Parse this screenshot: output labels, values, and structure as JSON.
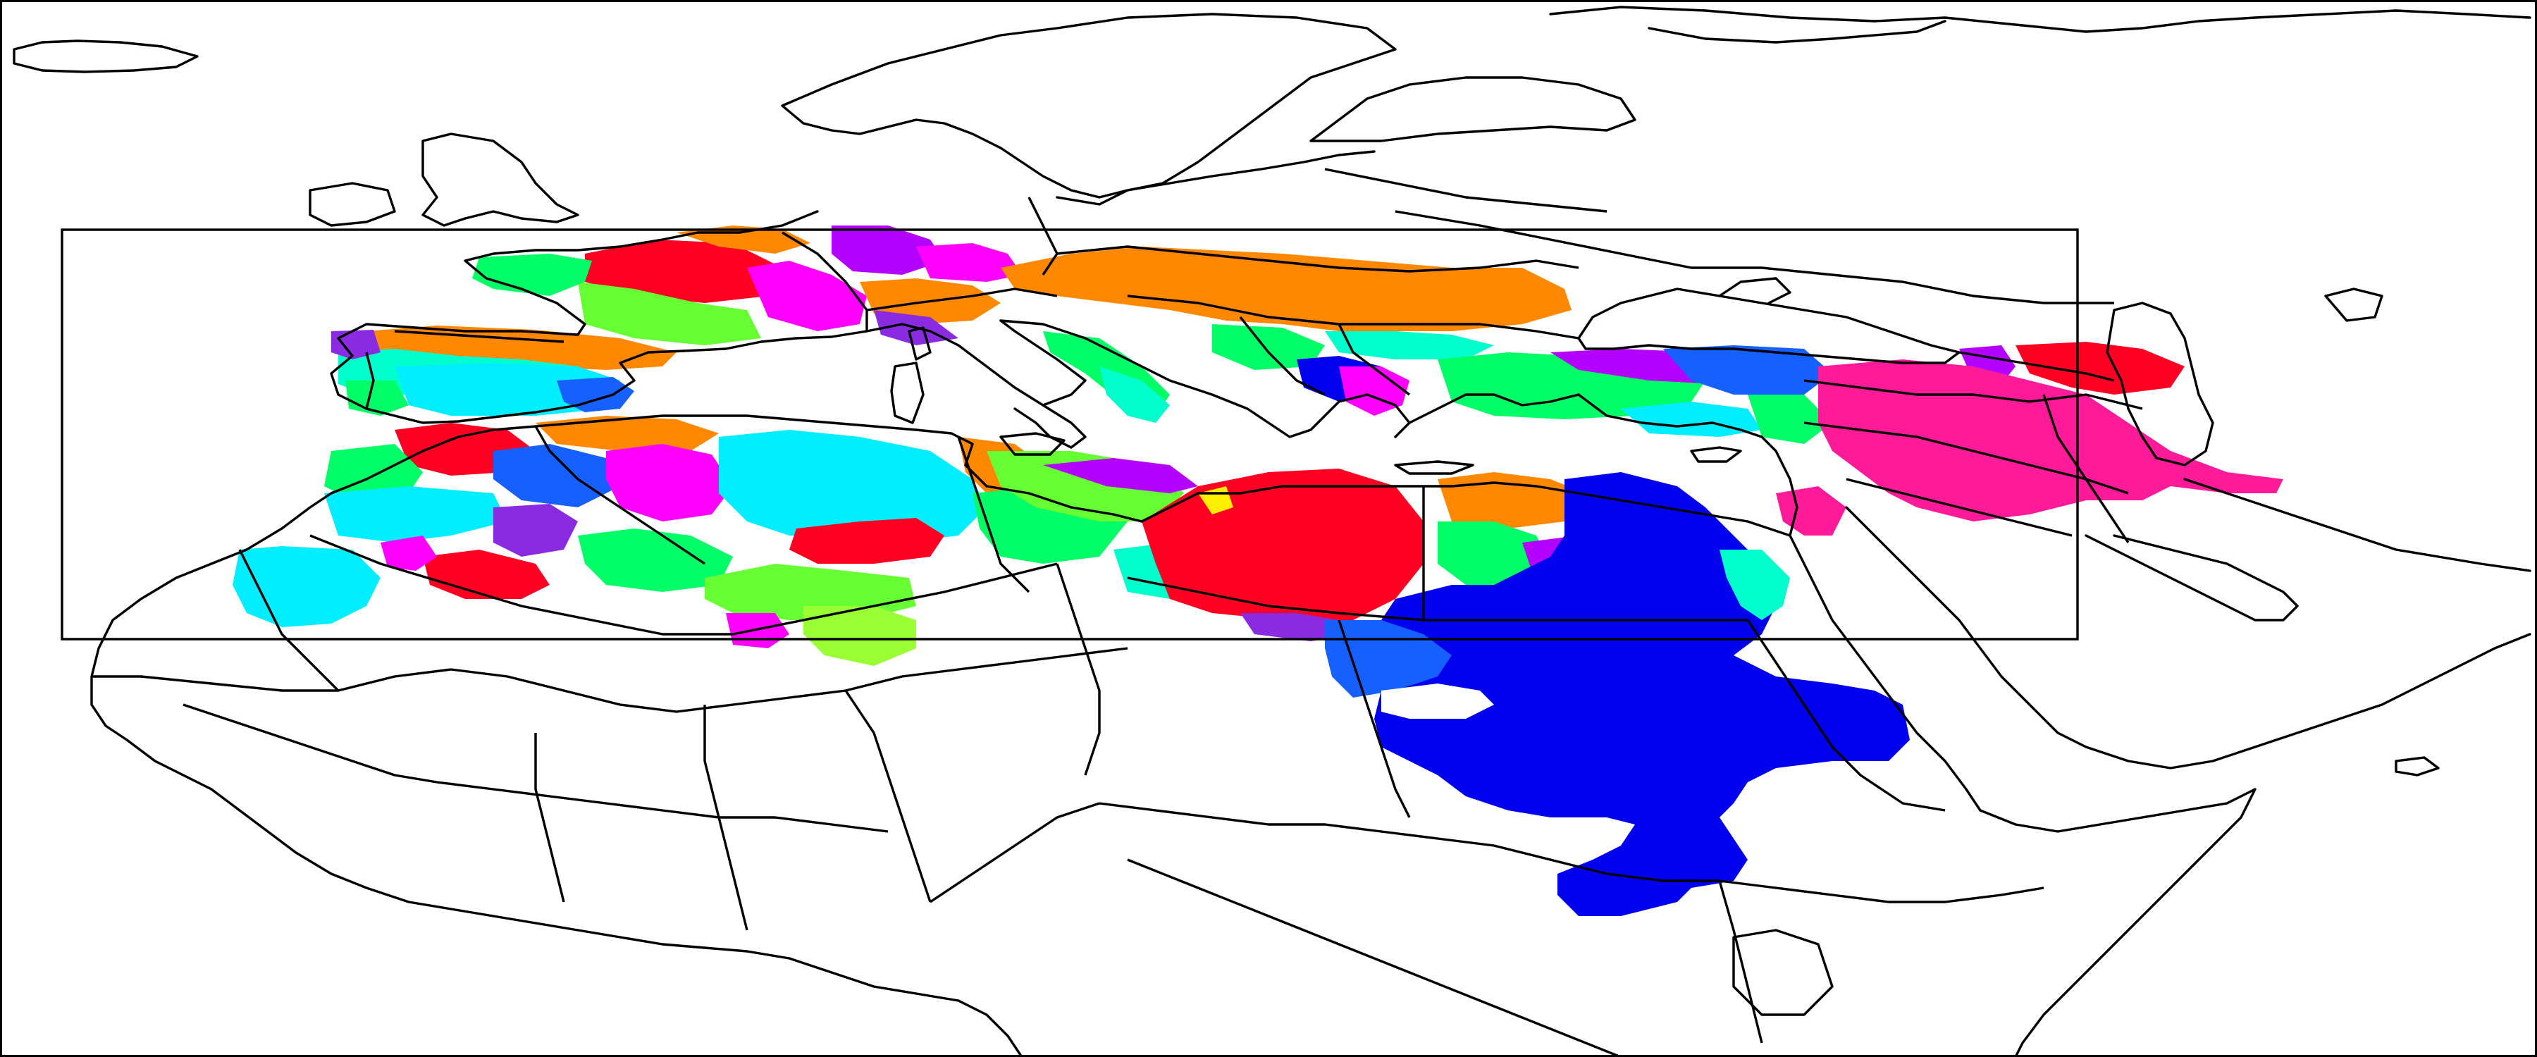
{
  "map": {
    "type": "cluster-region map",
    "projection": "equirectangular",
    "background_color": "#ffffff",
    "outline_color": "#000000",
    "domain_box_visible": true,
    "legend_visible": false,
    "region_colors": {
      "blue": "#0000ee",
      "red": "#ff0022",
      "orange": "#ff8800",
      "magenta": "#ff00ff",
      "pink": "#ff1a9a",
      "cyan": "#00eeff",
      "light_green": "#66ff33",
      "green": "#00ff66",
      "purple": "#8a2be2",
      "violet": "#b400ff",
      "teal": "#00ffcc",
      "royal_blue": "#1560ff",
      "yellow": "#ffee00",
      "chartreuse": "#99ff33"
    }
  }
}
